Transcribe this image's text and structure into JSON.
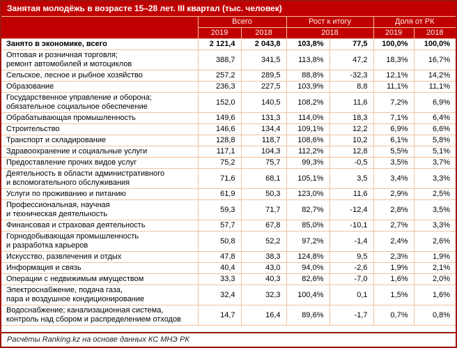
{
  "colors": {
    "header_fill": "#c00000",
    "outer_border": "#9c1410",
    "cell_border": "#f2c29e",
    "header_text": "#ffffff",
    "body_text": "#000000"
  },
  "chart_data": {
    "type": "table",
    "title": "Занятая молодёжь в возрасте 15–28 лет. III квартал (тыс. человек)",
    "column_groups": [
      {
        "label": "Всего",
        "span": 2
      },
      {
        "label": "Рост к итогу",
        "span": 2
      },
      {
        "label": "Доля от РК",
        "span": 2
      }
    ],
    "sub_columns": [
      {
        "label": "2019",
        "span": 1
      },
      {
        "label": "2018",
        "span": 1
      },
      {
        "label": "2018",
        "span": 2
      },
      {
        "label": "2019",
        "span": 1
      },
      {
        "label": "2018",
        "span": 1
      }
    ],
    "rows": [
      {
        "label": "Занято в экономике, всего",
        "bold": true,
        "values": [
          "2 121,4",
          "2 043,8",
          "103,8%",
          "77,5",
          "100,0%",
          "100,0%"
        ]
      },
      {
        "label": "Оптовая и розничная торговля;\nремонт автомобилей и мотоциклов",
        "bold": false,
        "values": [
          "388,7",
          "341,5",
          "113,8%",
          "47,2",
          "18,3%",
          "16,7%"
        ]
      },
      {
        "label": "Сельское, лесное и рыбное хозяйство",
        "bold": false,
        "values": [
          "257,2",
          "289,5",
          "88,8%",
          "-32,3",
          "12,1%",
          "14,2%"
        ]
      },
      {
        "label": "Образование",
        "bold": false,
        "values": [
          "236,3",
          "227,5",
          "103,9%",
          "8,8",
          "11,1%",
          "11,1%"
        ]
      },
      {
        "label": "Государственное управление и оборона;\nобязательное социальное обеспечение",
        "bold": false,
        "values": [
          "152,0",
          "140,5",
          "108,2%",
          "11,6",
          "7,2%",
          "6,9%"
        ]
      },
      {
        "label": "Обрабатывающая промышленность",
        "bold": false,
        "values": [
          "149,6",
          "131,3",
          "114,0%",
          "18,3",
          "7,1%",
          "6,4%"
        ]
      },
      {
        "label": "Строительство",
        "bold": false,
        "values": [
          "146,6",
          "134,4",
          "109,1%",
          "12,2",
          "6,9%",
          "6,6%"
        ]
      },
      {
        "label": "Транспорт и складирование",
        "bold": false,
        "values": [
          "128,8",
          "118,7",
          "108,6%",
          "10,2",
          "6,1%",
          "5,8%"
        ]
      },
      {
        "label": "Здравоохранение и социальные услуги",
        "bold": false,
        "values": [
          "117,1",
          "104,3",
          "112,2%",
          "12,8",
          "5,5%",
          "5,1%"
        ]
      },
      {
        "label": "Предоставление прочих видов услуг",
        "bold": false,
        "values": [
          "75,2",
          "75,7",
          "99,3%",
          "-0,5",
          "3,5%",
          "3,7%"
        ]
      },
      {
        "label": "Деятельность в области административного\nи вспомогательного обслуживания",
        "bold": false,
        "values": [
          "71,6",
          "68,1",
          "105,1%",
          "3,5",
          "3,4%",
          "3,3%"
        ]
      },
      {
        "label": "Услуги по проживанию и питанию",
        "bold": false,
        "values": [
          "61,9",
          "50,3",
          "123,0%",
          "11,6",
          "2,9%",
          "2,5%"
        ]
      },
      {
        "label": "Профессиональная, научная\nи техническая деятельность",
        "bold": false,
        "values": [
          "59,3",
          "71,7",
          "82,7%",
          "-12,4",
          "2,8%",
          "3,5%"
        ]
      },
      {
        "label": "Финансовая и страховая деятельность",
        "bold": false,
        "values": [
          "57,7",
          "67,8",
          "85,0%",
          "-10,1",
          "2,7%",
          "3,3%"
        ]
      },
      {
        "label": "Горнодобывающая промышленность\nи разработка карьеров",
        "bold": false,
        "values": [
          "50,8",
          "52,2",
          "97,2%",
          "-1,4",
          "2,4%",
          "2,6%"
        ]
      },
      {
        "label": "Искусство, развлечения и отдых",
        "bold": false,
        "values": [
          "47,8",
          "38,3",
          "124,8%",
          "9,5",
          "2,3%",
          "1,9%"
        ]
      },
      {
        "label": "Информация и связь",
        "bold": false,
        "values": [
          "40,4",
          "43,0",
          "94,0%",
          "-2,6",
          "1,9%",
          "2,1%"
        ]
      },
      {
        "label": "Операции с недвижимым имуществом",
        "bold": false,
        "values": [
          "33,3",
          "40,3",
          "82,6%",
          "-7,0",
          "1,6%",
          "2,0%"
        ]
      },
      {
        "label": "Электроснабжение, подача газа,\nпара и воздушное кондиционирование",
        "bold": false,
        "values": [
          "32,4",
          "32,3",
          "100,4%",
          "0,1",
          "1,5%",
          "1,6%"
        ]
      },
      {
        "label": "Водоснабжение; канализационная система,\nконтроль над сбором и распределением отходов",
        "bold": false,
        "values": [
          "14,7",
          "16,4",
          "89,6%",
          "-1,7",
          "0,7%",
          "0,8%"
        ]
      }
    ],
    "source_note": "Расчёты Ranking.kz на основе данных КС МНЭ РК"
  }
}
